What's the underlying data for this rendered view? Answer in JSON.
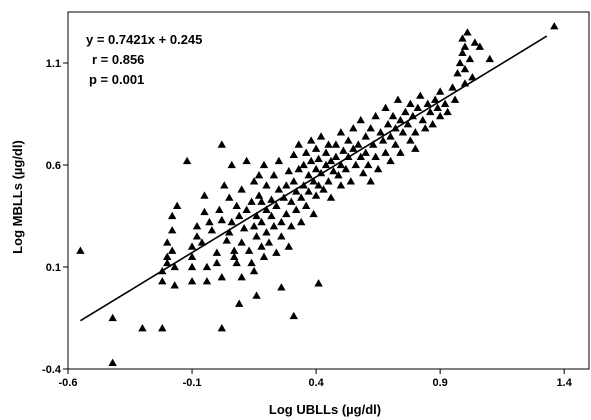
{
  "chart_data": {
    "type": "scatter",
    "title": "",
    "xlabel": "Log UBLLs (µg/dl)",
    "ylabel": "Log MBLLs (µg/dl)",
    "xlim": [
      -0.6,
      1.5
    ],
    "ylim": [
      -0.4,
      1.35
    ],
    "x_ticks": [
      -0.6,
      -0.1,
      0.4,
      0.9,
      1.4
    ],
    "x_tick_labels": [
      "-0.6",
      "-0.1",
      "0.4",
      "0.9",
      "1.4"
    ],
    "y_ticks": [
      -0.4,
      0.1,
      0.6,
      1.1
    ],
    "y_tick_labels": [
      "-0.4",
      "0.1",
      "0.6",
      "1.1"
    ],
    "grid": false,
    "marker": "triangle",
    "marker_color": "#000000",
    "annotations": [
      "y = 0.7421x + 0.245",
      "r = 0.856",
      "p = 0.001"
    ],
    "regression": {
      "slope": 0.7421,
      "intercept": 0.245,
      "x_range": [
        -0.55,
        1.33
      ]
    },
    "series": [
      {
        "points": [
          [
            -0.55,
            0.18
          ],
          [
            -0.42,
            -0.15
          ],
          [
            -0.42,
            -0.37
          ],
          [
            -0.3,
            -0.2
          ],
          [
            -0.22,
            -0.2
          ],
          [
            -0.22,
            0.08
          ],
          [
            -0.22,
            0.03
          ],
          [
            -0.2,
            0.22
          ],
          [
            -0.2,
            0.15
          ],
          [
            -0.2,
            0.12
          ],
          [
            -0.18,
            0.35
          ],
          [
            -0.18,
            0.28
          ],
          [
            -0.18,
            0.18
          ],
          [
            -0.17,
            0.1
          ],
          [
            -0.17,
            0.01
          ],
          [
            -0.16,
            0.4
          ],
          [
            -0.12,
            0.62
          ],
          [
            -0.1,
            0.1
          ],
          [
            -0.1,
            0.15
          ],
          [
            -0.1,
            0.2
          ],
          [
            -0.1,
            0.03
          ],
          [
            -0.08,
            0.25
          ],
          [
            -0.08,
            0.3
          ],
          [
            -0.06,
            0.22
          ],
          [
            -0.05,
            0.37
          ],
          [
            -0.05,
            0.45
          ],
          [
            -0.04,
            0.1
          ],
          [
            -0.04,
            0.03
          ],
          [
            -0.03,
            0.32
          ],
          [
            -0.02,
            0.28
          ],
          [
            0.0,
            0.17
          ],
          [
            0.0,
            0.12
          ],
          [
            0.01,
            0.38
          ],
          [
            0.02,
            0.33
          ],
          [
            0.02,
            0.7
          ],
          [
            0.02,
            0.05
          ],
          [
            0.03,
            0.5
          ],
          [
            0.04,
            0.23
          ],
          [
            0.05,
            0.27
          ],
          [
            0.05,
            0.44
          ],
          [
            0.06,
            0.32
          ],
          [
            0.06,
            0.6
          ],
          [
            0.07,
            0.18
          ],
          [
            0.07,
            0.15
          ],
          [
            0.08,
            0.4
          ],
          [
            0.08,
            0.12
          ],
          [
            0.09,
            0.35
          ],
          [
            0.1,
            0.22
          ],
          [
            0.1,
            0.48
          ],
          [
            0.1,
            0.05
          ],
          [
            0.11,
            0.29
          ],
          [
            0.12,
            0.38
          ],
          [
            0.12,
            0.62
          ],
          [
            0.13,
            0.18
          ],
          [
            0.14,
            0.42
          ],
          [
            0.14,
            0.12
          ],
          [
            0.15,
            0.52
          ],
          [
            0.15,
            0.3
          ],
          [
            0.15,
            0.08
          ],
          [
            0.16,
            0.25
          ],
          [
            0.16,
            0.35
          ],
          [
            0.17,
            0.45
          ],
          [
            0.17,
            0.55
          ],
          [
            0.18,
            0.2
          ],
          [
            0.18,
            0.32
          ],
          [
            0.18,
            0.42
          ],
          [
            0.19,
            0.6
          ],
          [
            0.19,
            0.15
          ],
          [
            0.2,
            0.27
          ],
          [
            0.2,
            0.38
          ],
          [
            0.2,
            0.5
          ],
          [
            0.21,
            0.22
          ],
          [
            0.22,
            0.43
          ],
          [
            0.22,
            0.35
          ],
          [
            0.23,
            0.3
          ],
          [
            0.23,
            0.55
          ],
          [
            0.24,
            0.4
          ],
          [
            0.24,
            0.17
          ],
          [
            0.25,
            0.62
          ],
          [
            0.25,
            0.48
          ],
          [
            0.26,
            0.32
          ],
          [
            0.26,
            0.25
          ],
          [
            0.27,
            0.44
          ],
          [
            0.28,
            0.5
          ],
          [
            0.28,
            0.36
          ],
          [
            0.29,
            0.57
          ],
          [
            0.29,
            0.2
          ],
          [
            0.3,
            0.42
          ],
          [
            0.3,
            0.3
          ],
          [
            0.31,
            0.65
          ],
          [
            0.31,
            0.52
          ],
          [
            0.32,
            0.47
          ],
          [
            0.32,
            0.38
          ],
          [
            0.33,
            0.7
          ],
          [
            0.33,
            0.58
          ],
          [
            0.34,
            0.44
          ],
          [
            0.34,
            0.32
          ],
          [
            0.35,
            0.6
          ],
          [
            0.35,
            0.5
          ],
          [
            0.36,
            0.66
          ],
          [
            0.36,
            0.4
          ],
          [
            0.37,
            0.55
          ],
          [
            0.37,
            0.47
          ],
          [
            0.38,
            0.72
          ],
          [
            0.38,
            0.62
          ],
          [
            0.39,
            0.52
          ],
          [
            0.39,
            0.36
          ],
          [
            0.4,
            0.68
          ],
          [
            0.4,
            0.58
          ],
          [
            0.4,
            0.45
          ],
          [
            0.41,
            0.63
          ],
          [
            0.41,
            0.5
          ],
          [
            0.42,
            0.74
          ],
          [
            0.42,
            0.56
          ],
          [
            0.43,
            0.48
          ],
          [
            0.44,
            0.66
          ],
          [
            0.44,
            0.6
          ],
          [
            0.45,
            0.7
          ],
          [
            0.45,
            0.52
          ],
          [
            0.46,
            0.62
          ],
          [
            0.46,
            0.44
          ],
          [
            0.47,
            0.57
          ],
          [
            0.48,
            0.7
          ],
          [
            0.48,
            0.64
          ],
          [
            0.49,
            0.55
          ],
          [
            0.5,
            0.76
          ],
          [
            0.5,
            0.6
          ],
          [
            0.5,
            0.5
          ],
          [
            0.51,
            0.67
          ],
          [
            0.52,
            0.58
          ],
          [
            0.53,
            0.72
          ],
          [
            0.53,
            0.64
          ],
          [
            0.54,
            0.52
          ],
          [
            0.55,
            0.68
          ],
          [
            0.55,
            0.78
          ],
          [
            0.56,
            0.6
          ],
          [
            0.57,
            0.7
          ],
          [
            0.58,
            0.82
          ],
          [
            0.58,
            0.64
          ],
          [
            0.59,
            0.56
          ],
          [
            0.6,
            0.74
          ],
          [
            0.6,
            0.66
          ],
          [
            0.61,
            0.6
          ],
          [
            0.62,
            0.78
          ],
          [
            0.62,
            0.52
          ],
          [
            0.63,
            0.7
          ],
          [
            0.64,
            0.84
          ],
          [
            0.64,
            0.64
          ],
          [
            0.65,
            0.58
          ],
          [
            0.66,
            0.76
          ],
          [
            0.67,
            0.72
          ],
          [
            0.68,
            0.66
          ],
          [
            0.68,
            0.88
          ],
          [
            0.69,
            0.8
          ],
          [
            0.7,
            0.74
          ],
          [
            0.7,
            0.62
          ],
          [
            0.71,
            0.84
          ],
          [
            0.72,
            0.78
          ],
          [
            0.72,
            0.7
          ],
          [
            0.73,
            0.92
          ],
          [
            0.74,
            0.82
          ],
          [
            0.74,
            0.66
          ],
          [
            0.75,
            0.76
          ],
          [
            0.76,
            0.86
          ],
          [
            0.77,
            0.8
          ],
          [
            0.78,
            0.72
          ],
          [
            0.78,
            0.9
          ],
          [
            0.79,
            0.84
          ],
          [
            0.8,
            0.76
          ],
          [
            0.8,
            0.68
          ],
          [
            0.81,
            0.88
          ],
          [
            0.82,
            0.94
          ],
          [
            0.83,
            0.82
          ],
          [
            0.84,
            0.78
          ],
          [
            0.85,
            0.9
          ],
          [
            0.86,
            0.86
          ],
          [
            0.87,
            0.8
          ],
          [
            0.88,
            0.92
          ],
          [
            0.89,
            0.88
          ],
          [
            0.9,
            0.84
          ],
          [
            0.9,
            0.96
          ],
          [
            0.92,
            0.9
          ],
          [
            0.93,
            0.86
          ],
          [
            0.95,
            0.98
          ],
          [
            0.96,
            0.92
          ],
          [
            0.97,
            1.05
          ],
          [
            0.98,
            1.1
          ],
          [
            0.99,
            1.15
          ],
          [
            0.99,
            1.22
          ],
          [
            1.0,
            1.0
          ],
          [
            1.0,
            1.07
          ],
          [
            1.0,
            1.18
          ],
          [
            1.01,
            1.25
          ],
          [
            1.02,
            1.12
          ],
          [
            1.03,
            1.03
          ],
          [
            1.04,
            1.2
          ],
          [
            1.06,
            1.18
          ],
          [
            1.1,
            1.12
          ],
          [
            1.36,
            1.28
          ],
          [
            0.26,
            0.0
          ],
          [
            0.09,
            -0.08
          ],
          [
            0.02,
            -0.2
          ],
          [
            0.41,
            0.02
          ],
          [
            0.31,
            -0.14
          ],
          [
            0.16,
            -0.04
          ]
        ]
      }
    ]
  }
}
